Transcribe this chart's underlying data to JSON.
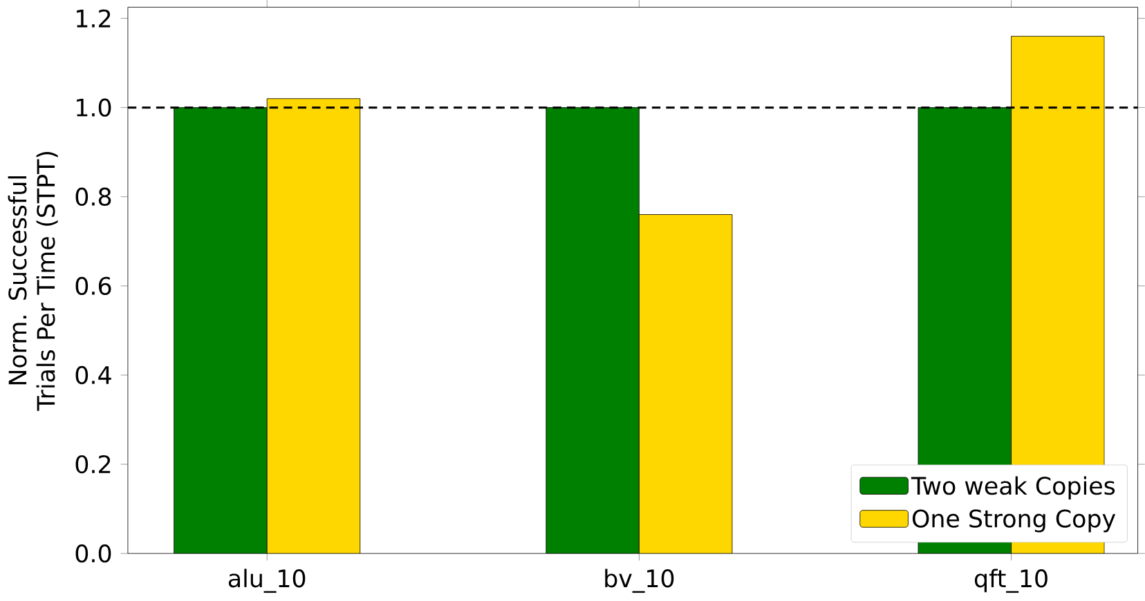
{
  "chart_data": {
    "type": "bar",
    "ylabel": "Norm. Successful Trials Per Time (STPT)",
    "categories": [
      "alu_10",
      "bv_10",
      "qft_10"
    ],
    "series": [
      {
        "name": "Two weak Copies",
        "color": "#008000",
        "values": [
          1.0,
          1.0,
          1.0
        ]
      },
      {
        "name": "One Strong Copy",
        "color": "#ffd700",
        "values": [
          1.02,
          0.76,
          1.16
        ]
      }
    ],
    "ylim": [
      0,
      1.225
    ],
    "yticks": [
      {
        "value": 0,
        "label": "0.0"
      },
      {
        "value": 0.2,
        "label": "0.2"
      },
      {
        "value": 0.4,
        "label": "0.4"
      },
      {
        "value": 0.6,
        "label": "0.6"
      },
      {
        "value": 0.8,
        "label": "0.8"
      },
      {
        "value": 1.0,
        "label": "1.0"
      },
      {
        "value": 1.2,
        "label": "1.2"
      }
    ],
    "ref_lines": [
      {
        "axis": "y",
        "value": 1.0,
        "color": "#000000",
        "line_style": "dashed"
      }
    ],
    "legend": "bottom right",
    "grid": false
  }
}
